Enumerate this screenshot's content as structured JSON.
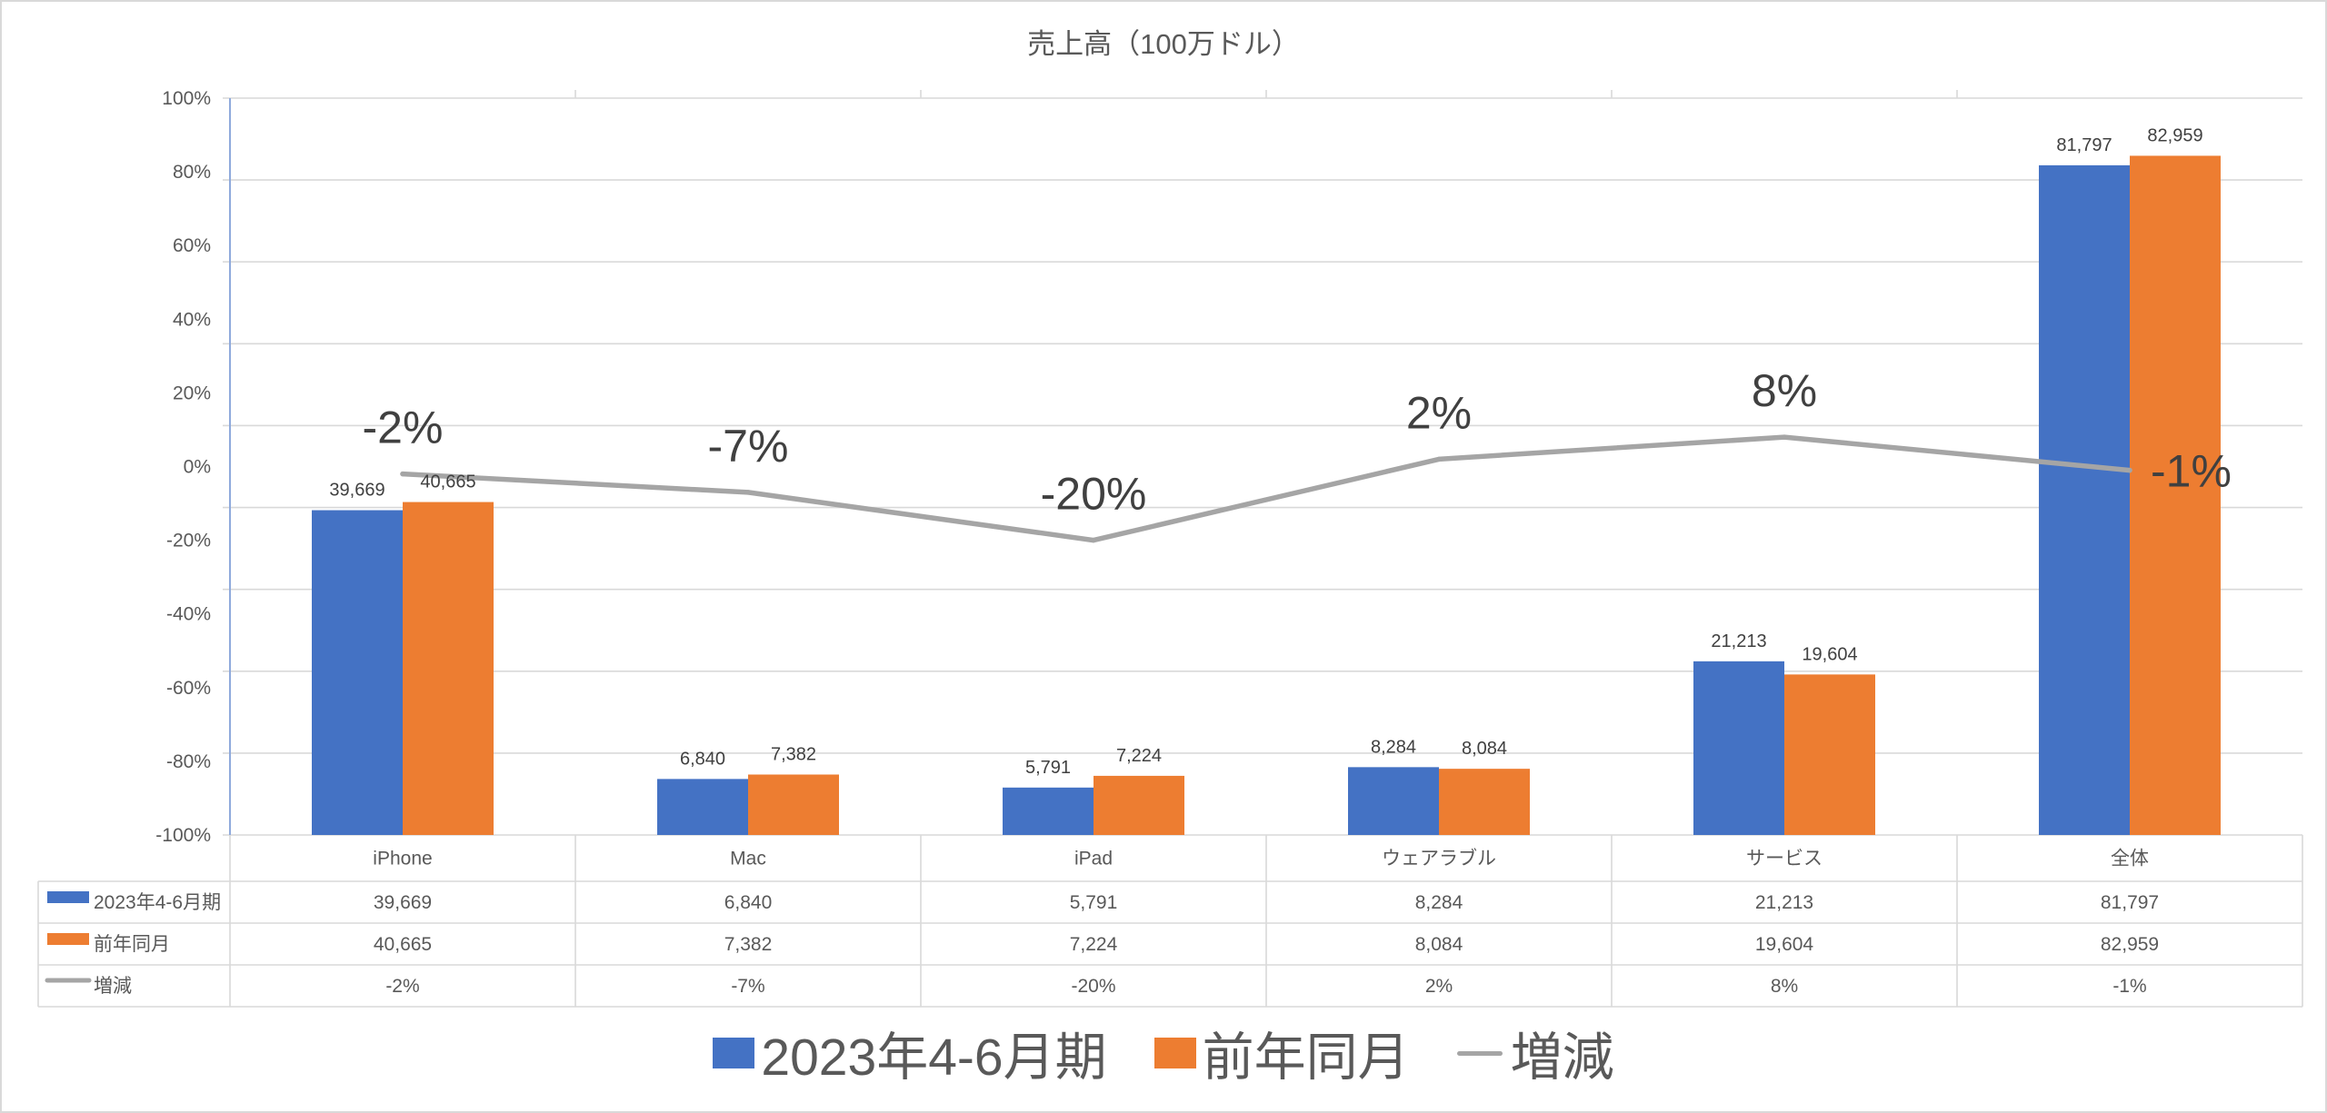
{
  "chart_data": {
    "type": "bar",
    "title": "売上高（100万ドル）",
    "categories": [
      "iPhone",
      "Mac",
      "iPad",
      "ウェアラブル",
      "サービス",
      "全体"
    ],
    "series": [
      {
        "name": "2023年4-6月期",
        "type": "bar",
        "secondary_axis": true,
        "color": "#4472C4",
        "values": [
          39669,
          6840,
          5791,
          8284,
          21213,
          81797
        ],
        "data_labels": [
          "39,669",
          "6,840",
          "5,791",
          "8,284",
          "21,213",
          "81,797"
        ]
      },
      {
        "name": "前年同月",
        "type": "bar",
        "secondary_axis": true,
        "color": "#ED7D31",
        "values": [
          40665,
          7382,
          7224,
          8084,
          19604,
          82959
        ],
        "data_labels": [
          "40,665",
          "7,382",
          "7,224",
          "8,084",
          "19,604",
          "82,959"
        ]
      },
      {
        "name": "増減",
        "type": "line",
        "secondary_axis": false,
        "color": "#A5A5A5",
        "values": [
          -2,
          -7,
          -20,
          2,
          8,
          -1
        ],
        "data_labels": [
          "-2%",
          "-7%",
          "-20%",
          "2%",
          "8%",
          "-1%"
        ]
      }
    ],
    "y_axis": {
      "range": [
        -100,
        100
      ],
      "tick_labels": [
        "100%",
        "80%",
        "60%",
        "40%",
        "20%",
        "0%",
        "-20%",
        "-40%",
        "-60%",
        "-80%",
        "-100%"
      ]
    },
    "y2_axis": {
      "visible": false,
      "range": [
        0,
        90000
      ],
      "major_unit": 10000
    },
    "grid": true,
    "legend": "bottom",
    "data_table": true
  }
}
